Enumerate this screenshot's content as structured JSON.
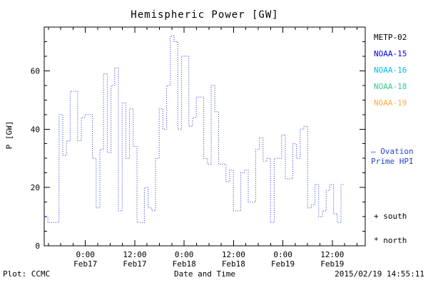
{
  "chart_data": {
    "type": "line",
    "subtype": "dotted-step",
    "title": "Hemispheric Power [GW]",
    "xlabel": "Date and Time",
    "ylabel": "P [GW]",
    "ylim": [
      0,
      75
    ],
    "yticks_major": [
      0,
      20,
      40,
      60
    ],
    "ytick_minor_step": 5,
    "x_axis_hours": [
      0,
      78
    ],
    "x_minor_step_hours": 3,
    "xticks": [
      {
        "t": 10,
        "time": "0:00",
        "date": "Feb17"
      },
      {
        "t": 22,
        "time": "12:00",
        "date": "Feb17"
      },
      {
        "t": 34,
        "time": "0:00",
        "date": "Feb18"
      },
      {
        "t": 46,
        "time": "12:00",
        "date": "Feb18"
      },
      {
        "t": 58,
        "time": "0:00",
        "date": "Feb19"
      },
      {
        "t": 70,
        "time": "12:00",
        "date": "Feb19"
      }
    ],
    "grid": false,
    "legend_position": "right-outside",
    "series": [
      {
        "name": "Ovation Prime HPI (NOAA)",
        "color": "#2233cc",
        "style": "dotted-step",
        "t_start": 0,
        "t_end": 73,
        "values": [
          10,
          8,
          8,
          8,
          45,
          31,
          36,
          53,
          53,
          36,
          44,
          45,
          45,
          30,
          13,
          33,
          59,
          32,
          55,
          61,
          12,
          49,
          30,
          47,
          34,
          8,
          8,
          20,
          13,
          12,
          30,
          47,
          40,
          55,
          72,
          70,
          40,
          65,
          65,
          41,
          44,
          51,
          51,
          30,
          28,
          55,
          46,
          28,
          28,
          22,
          26,
          12,
          12,
          25,
          26,
          15,
          15,
          33,
          37,
          29,
          30,
          8,
          30,
          30,
          38,
          23,
          23,
          35,
          30,
          40,
          41,
          13,
          14,
          21,
          10,
          12,
          19,
          21,
          11,
          8,
          21
        ]
      }
    ]
  },
  "legend": {
    "satellites": [
      {
        "label": "METP-02",
        "color": "#000000"
      },
      {
        "label": "NOAA-15",
        "color": "#0000ee"
      },
      {
        "label": "NOAA-16",
        "color": "#00c0e8"
      },
      {
        "label": "NOAA-18",
        "color": "#33cc88"
      },
      {
        "label": "NOAA-19",
        "color": "#ffaa44"
      }
    ],
    "model_note": {
      "line1": "– Ovation",
      "line2": "Prime HPI",
      "color": "#2244cc"
    },
    "markers": [
      {
        "label": "+ south"
      },
      {
        "label": "* north"
      }
    ]
  },
  "footer": {
    "plot_credit": "Plot: CCMC",
    "timestamp": "2015/02/19 14:55:11"
  }
}
